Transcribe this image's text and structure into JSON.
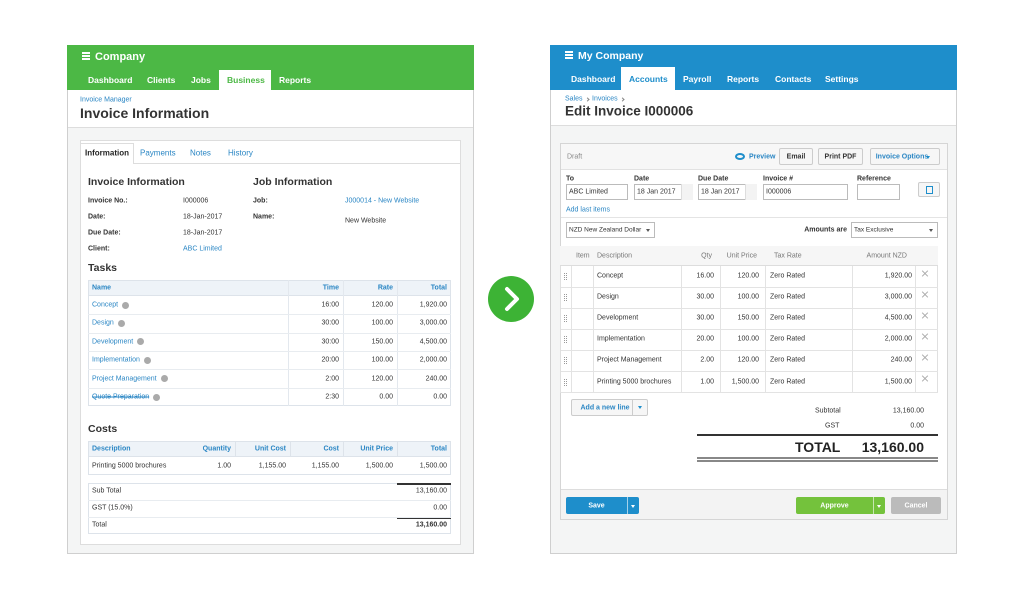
{
  "left": {
    "header": {
      "title": "Company"
    },
    "nav": [
      "Dashboard",
      "Clients",
      "Jobs",
      "Business",
      "Reports"
    ],
    "breadcrumb": "Invoice Manager",
    "title": "Invoice Information",
    "tabs": [
      "Information",
      "Payments",
      "Notes",
      "History"
    ],
    "invoice_info": {
      "heading": "Invoice Information",
      "fields": [
        [
          "Invoice No.:",
          "I000006"
        ],
        [
          "Date:",
          "18-Jan-2017"
        ],
        [
          "Due Date:",
          "18-Jan-2017"
        ],
        [
          "Client:",
          "ABC Limited"
        ]
      ]
    },
    "job_info": {
      "heading": "Job Information",
      "fields": [
        [
          "Job:",
          "J000014 - New Website"
        ],
        [
          "Name:",
          "New Website"
        ]
      ]
    },
    "tasks": {
      "heading": "Tasks",
      "columns": [
        "Name",
        "Time",
        "Rate",
        "Total"
      ],
      "rows": [
        [
          "Concept",
          "16:00",
          "120.00",
          "1,920.00"
        ],
        [
          "Design",
          "30:00",
          "100.00",
          "3,000.00"
        ],
        [
          "Development",
          "30:00",
          "150.00",
          "4,500.00"
        ],
        [
          "Implementation",
          "20:00",
          "100.00",
          "2,000.00"
        ],
        [
          "Project Management",
          "2:00",
          "120.00",
          "240.00"
        ],
        [
          "Quote Preparation",
          "2:30",
          "0.00",
          "0.00"
        ]
      ]
    },
    "costs": {
      "heading": "Costs",
      "columns": [
        "Description",
        "Quantity",
        "Unit Cost",
        "Cost",
        "Unit Price",
        "Total"
      ],
      "rows": [
        [
          "Printing 5000 brochures",
          "1.00",
          "1,155.00",
          "1,155.00",
          "1,500.00",
          "1,500.00"
        ]
      ]
    },
    "summary": [
      [
        "Sub Total",
        "13,160.00"
      ],
      [
        "GST (15.0%)",
        "0.00"
      ],
      [
        "Total",
        "13,160.00"
      ]
    ]
  },
  "right": {
    "header": {
      "title": "My Company"
    },
    "nav": [
      "Dashboard",
      "Accounts",
      "Payroll",
      "Reports",
      "Contacts",
      "Settings"
    ],
    "breadcrumb": [
      "Sales",
      "Invoices"
    ],
    "title": "Edit Invoice I000006",
    "status": "Draft",
    "actions": [
      "Preview",
      "Email",
      "Print PDF",
      "Invoice Options"
    ],
    "fields": {
      "labels": [
        "To",
        "Date",
        "Due Date",
        "Invoice #",
        "Reference"
      ],
      "values": [
        "ABC Limited",
        "18 Jan 2017",
        "18 Jan 2017",
        "I000006"
      ]
    },
    "add_last_items": "Add last items",
    "currency": "NZD New Zealand Dollar",
    "amounts_are": {
      "label": "Amounts are",
      "value": "Tax Exclusive"
    },
    "lines": {
      "columns": [
        "Item",
        "Description",
        "Qty",
        "Unit Price",
        "Tax Rate",
        "Amount NZD"
      ],
      "rows": [
        [
          "Concept",
          "16.00",
          "120.00",
          "Zero Rated",
          "1,920.00"
        ],
        [
          "Design",
          "30.00",
          "100.00",
          "Zero Rated",
          "3,000.00"
        ],
        [
          "Development",
          "30.00",
          "150.00",
          "Zero Rated",
          "4,500.00"
        ],
        [
          "Implementation",
          "20.00",
          "100.00",
          "Zero Rated",
          "2,000.00"
        ],
        [
          "Project Management",
          "2.00",
          "120.00",
          "Zero Rated",
          "240.00"
        ],
        [
          "Printing 5000 brochures",
          "1.00",
          "1,500.00",
          "Zero Rated",
          "1,500.00"
        ]
      ]
    },
    "add_line": "Add a new line",
    "totals": {
      "subtotal": [
        "Subtotal",
        "13,160.00"
      ],
      "gst": [
        "GST",
        "0.00"
      ],
      "total": [
        "TOTAL",
        "13,160.00"
      ]
    },
    "buttons": [
      "Save",
      "Approve",
      "Cancel"
    ]
  }
}
